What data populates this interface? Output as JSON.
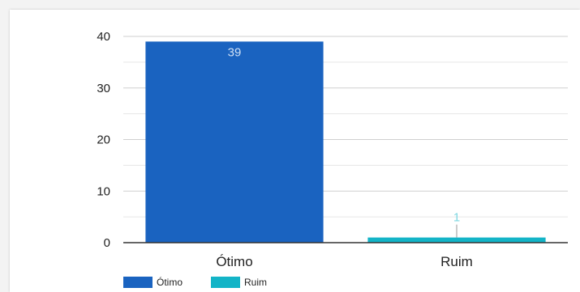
{
  "chart_data": {
    "type": "bar",
    "categories": [
      "Ótimo",
      "Ruim"
    ],
    "values": [
      39,
      1
    ],
    "data_labels": [
      "39",
      "1"
    ],
    "colors": [
      "#1a63c0",
      "#13b4c7"
    ],
    "label_colors": [
      "#cfe0f5",
      "#7fd8e2"
    ],
    "ylim": [
      0,
      40
    ],
    "y_ticks": [
      0,
      10,
      20,
      30,
      40
    ],
    "grid": true,
    "legend": {
      "placement": "bottom-left",
      "entries": [
        "Ótimo",
        "Ruim"
      ]
    },
    "title": "",
    "xlabel": "",
    "ylabel": ""
  }
}
